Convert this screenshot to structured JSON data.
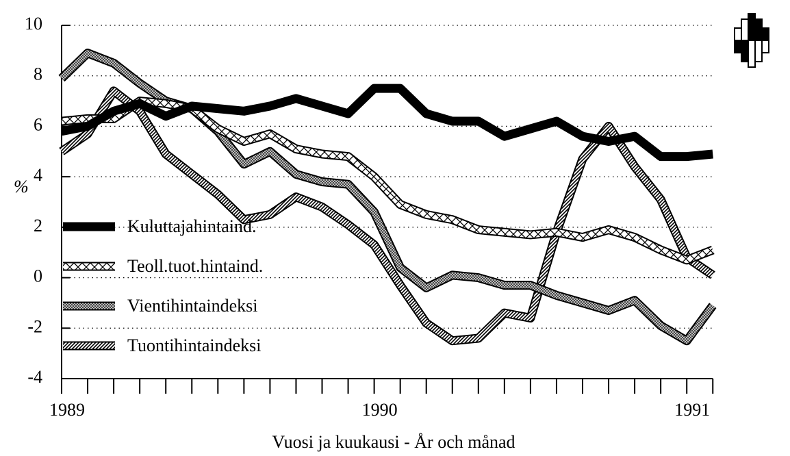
{
  "chart_data": {
    "type": "line",
    "ylabel": "%",
    "xlabel": "Vuosi ja kuukausi - År och månad",
    "categories": [
      "1989",
      null,
      null,
      null,
      null,
      null,
      null,
      null,
      null,
      null,
      null,
      null,
      "1990",
      null,
      null,
      null,
      null,
      null,
      null,
      null,
      null,
      null,
      null,
      null,
      "1991",
      null
    ],
    "ylim": [
      -4,
      10
    ],
    "yticks": [
      -4,
      -2,
      0,
      2,
      4,
      6,
      8,
      10
    ],
    "grid": true,
    "legend": "left",
    "series": [
      {
        "name": "Kuluttajahintaind.",
        "color": "#000000",
        "pattern": "solid",
        "values": [
          5.8,
          6.0,
          6.6,
          6.9,
          6.4,
          6.8,
          6.7,
          6.6,
          6.8,
          7.1,
          6.8,
          6.5,
          7.5,
          7.5,
          6.5,
          6.2,
          6.2,
          5.6,
          5.9,
          6.2,
          5.6,
          5.4,
          5.6,
          4.8,
          4.8,
          4.9
        ]
      },
      {
        "name": "Teoll.tuot.hintaind.",
        "color": "#ffffff",
        "pattern": "crosshatch",
        "values": [
          6.2,
          6.3,
          6.3,
          7.0,
          6.9,
          6.7,
          5.9,
          5.4,
          5.7,
          5.1,
          4.9,
          4.8,
          4.0,
          2.9,
          2.5,
          2.3,
          1.9,
          1.8,
          1.7,
          1.8,
          1.6,
          1.9,
          1.6,
          1.1,
          0.7,
          1.1
        ]
      },
      {
        "name": "Vientihintaindeksi",
        "color": "#888888",
        "pattern": "dots",
        "values": [
          7.9,
          8.9,
          8.5,
          7.7,
          7.0,
          6.7,
          5.8,
          4.5,
          5.0,
          4.1,
          3.8,
          3.7,
          2.6,
          0.4,
          -0.4,
          0.1,
          0.0,
          -0.3,
          -0.3,
          -0.7,
          -1.0,
          -1.3,
          -0.9,
          -1.9,
          -2.5,
          -1.1
        ]
      },
      {
        "name": "Tuontihintaindeksi",
        "color": "#ffffff",
        "pattern": "stripes",
        "values": [
          5.0,
          5.7,
          7.4,
          6.6,
          4.9,
          4.1,
          3.3,
          2.3,
          2.5,
          3.2,
          2.8,
          2.1,
          1.3,
          -0.3,
          -1.8,
          -2.5,
          -2.4,
          -1.4,
          -1.6,
          1.8,
          4.7,
          6.0,
          4.4,
          3.1,
          0.8,
          0.1
        ]
      }
    ]
  }
}
